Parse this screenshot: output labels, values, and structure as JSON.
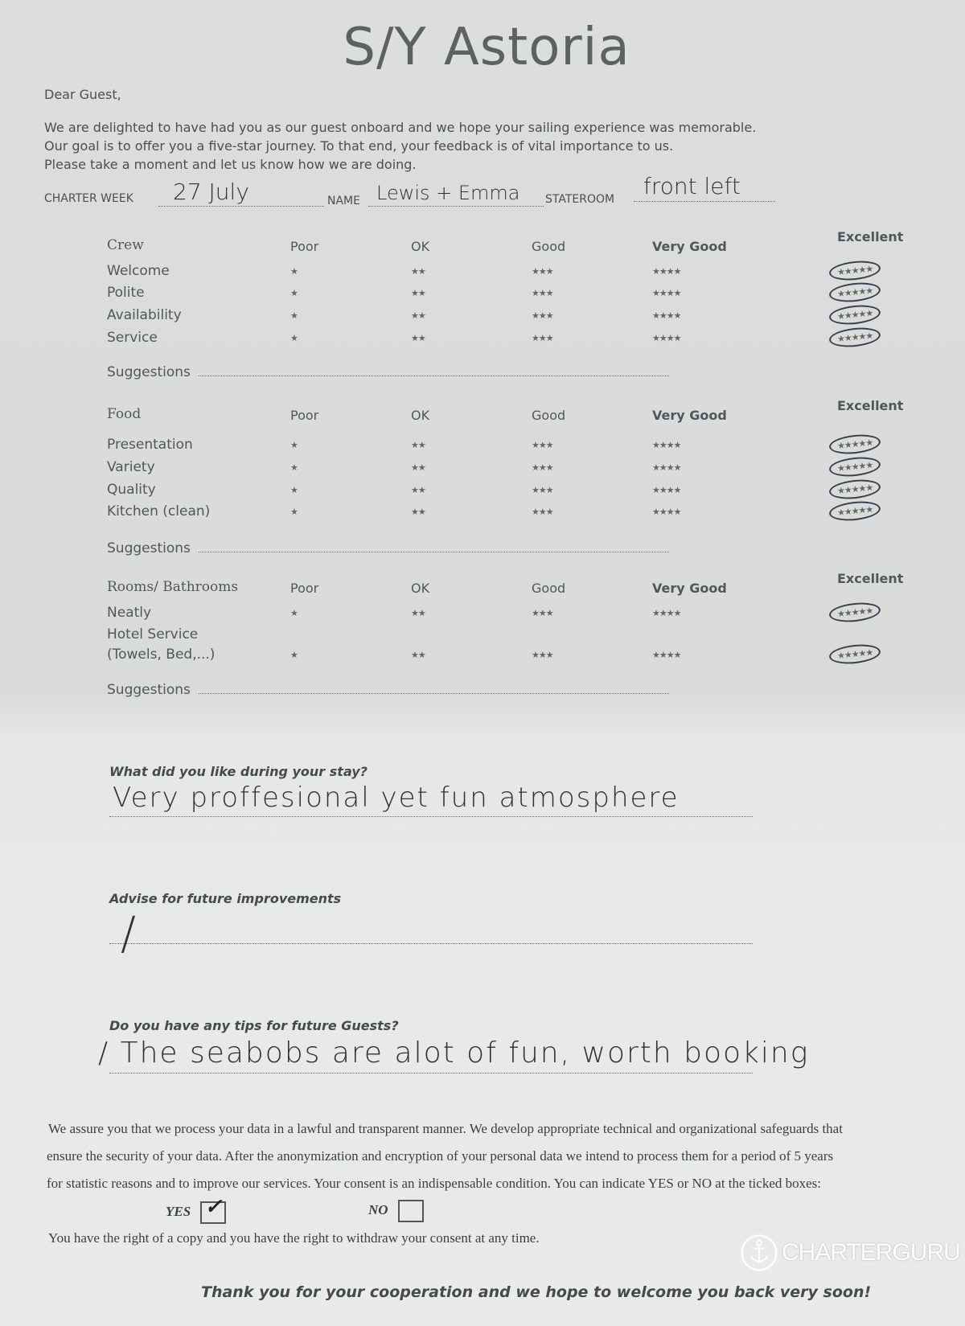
{
  "title": "S/Y Astoria",
  "greeting": "Dear Guest,",
  "intro": [
    "We are delighted to have had you as our guest onboard and we hope your sailing experience was memorable.",
    "Our goal is to offer you a five-star journey. To that end, your feedback is of vital importance to us.",
    "Please take a moment and let us know how we are doing."
  ],
  "details": {
    "charter_week_label": "CHARTER WEEK",
    "charter_week_value": "27 July",
    "name_label": "NAME",
    "name_value": "Lewis + Emma",
    "stateroom_label": "STATEROOM",
    "stateroom_value": "front left"
  },
  "rating_columns": [
    "Poor",
    "OK",
    "Good",
    "Very Good",
    "Excellent"
  ],
  "rating_stars": [
    "★",
    "★★",
    "★★★",
    "★★★★",
    "★★★★★"
  ],
  "suggestions_label": "Suggestions",
  "sections": [
    {
      "heading": "Crew",
      "items": [
        {
          "label": "Welcome",
          "rating": "Excellent"
        },
        {
          "label": "Polite",
          "rating": "Excellent"
        },
        {
          "label": "Availability",
          "rating": "Excellent"
        },
        {
          "label": "Service",
          "rating": "Excellent"
        }
      ]
    },
    {
      "heading": "Food",
      "items": [
        {
          "label": "Presentation",
          "rating": "Excellent"
        },
        {
          "label": "Variety",
          "rating": "Excellent"
        },
        {
          "label": "Quality",
          "rating": "Excellent"
        },
        {
          "label": "Kitchen (clean)",
          "rating": "Excellent"
        }
      ]
    },
    {
      "heading": "Rooms/ Bathrooms",
      "items": [
        {
          "label": "Neatly",
          "rating": "Excellent"
        },
        {
          "label": "Hotel Service (Towels, Bed,...)",
          "rating": "Excellent"
        }
      ]
    }
  ],
  "questions": [
    {
      "question": "What did you like during your stay?",
      "answer": "Very proffesional yet fun atmosphere"
    },
    {
      "question": "Advise for future improvements",
      "answer": "/"
    },
    {
      "question": "Do you have any tips for future Guests?",
      "answer": "/ The seabobs are alot of fun, worth booking"
    }
  ],
  "privacy": [
    "We assure you that we process your data in a lawful and transparent manner. We develop appropriate technical and organizational safeguards that",
    "ensure the security of your data. After the anonymization and encryption of your personal data we intend to process them for a period of 5 years",
    "for statistic reasons and to improve our services. Your consent is an indispensable condition. You can indicate YES or NO at the ticked boxes:"
  ],
  "consent": {
    "yes_label": "YES",
    "no_label": "NO",
    "yes_checked": true,
    "no_checked": false
  },
  "rights": "You have the right of a copy and you have the right to withdraw your consent at any time.",
  "closing": "Thank you for your cooperation and we hope to welcome you back very soon!",
  "watermark": "CHARTERGURU"
}
